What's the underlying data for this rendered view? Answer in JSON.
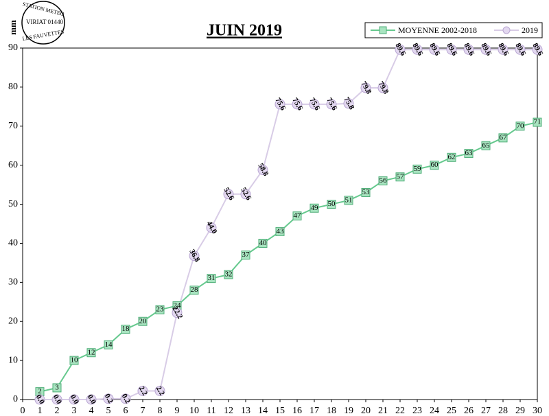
{
  "logo": {
    "lines": [
      "STATION METEO",
      "VIRIAT 01440",
      "LES FAUVETTES"
    ]
  },
  "chart_data": {
    "type": "line",
    "title": "JUIN 2019",
    "y_label": "mm",
    "x": [
      1,
      2,
      3,
      4,
      5,
      6,
      7,
      8,
      9,
      10,
      11,
      12,
      13,
      14,
      15,
      16,
      17,
      18,
      19,
      20,
      21,
      22,
      23,
      24,
      25,
      26,
      27,
      28,
      29,
      30
    ],
    "series": [
      {
        "name": "MOYENNE 2002-2018",
        "color": "#66c98e",
        "marker": "square",
        "values": [
          2,
          3,
          10,
          12,
          14,
          18,
          20,
          23,
          24,
          28,
          31,
          32,
          37,
          40,
          43,
          47,
          49,
          50,
          51,
          53,
          56,
          57,
          59,
          60,
          62,
          63,
          65,
          67,
          70,
          71
        ]
      },
      {
        "name": "2019",
        "color": "#d8cce6",
        "marker": "circle",
        "values": [
          0,
          0,
          0,
          0,
          0.2,
          0.2,
          2.2,
          2.2,
          22.2,
          36.8,
          44,
          52.6,
          52.6,
          58.8,
          75.6,
          75.6,
          75.6,
          75.6,
          75.8,
          79.8,
          79.8,
          89.6,
          89.6,
          89.6,
          89.6,
          89.6,
          89.6,
          89.6,
          89.6,
          89.6
        ],
        "value_labels": [
          "0.0",
          "0.0",
          "0.0",
          "0.0",
          "0.2",
          "0.2",
          "2.2",
          "2.2",
          "22.2",
          "36.8",
          "44.0",
          "52.6",
          "52.6",
          "58.8",
          "75.6",
          "75.6",
          "75.6",
          "75.6",
          "75.8",
          "79.8",
          "79.8",
          "89.6",
          "89.6",
          "89.6",
          "89.6",
          "89.6",
          "89.6",
          "89.6",
          "89.6",
          "89.6"
        ]
      }
    ],
    "xlim": [
      0,
      30
    ],
    "xticks": [
      0,
      1,
      2,
      3,
      4,
      5,
      6,
      7,
      8,
      9,
      10,
      11,
      12,
      13,
      14,
      15,
      16,
      17,
      18,
      19,
      20,
      21,
      22,
      23,
      24,
      25,
      26,
      27,
      28,
      29,
      30
    ],
    "ylim": [
      0,
      90
    ],
    "yticks": [
      0,
      10,
      20,
      30,
      40,
      50,
      60,
      70,
      80,
      90
    ],
    "legend": "top-right"
  }
}
